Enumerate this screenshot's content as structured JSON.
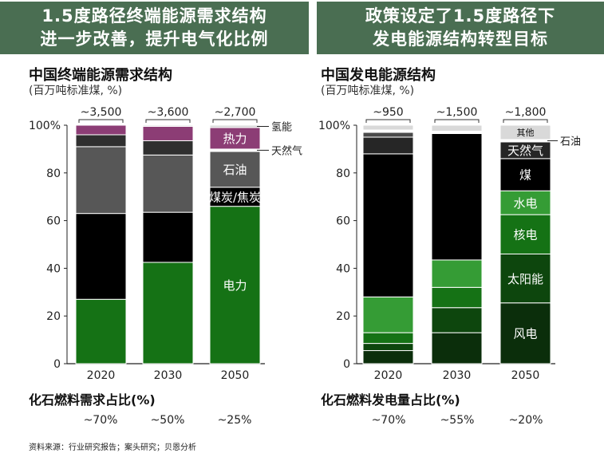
{
  "banners": {
    "left": [
      "1.5度路径终端能源需求结构",
      "进一步改善，提升电气化比例"
    ],
    "right": [
      "政策设定了1.5度路径下",
      "发电能源结构转型目标"
    ]
  },
  "source": "资料来源：行业研究报告；案头研究；贝恩分析",
  "chart_data": [
    {
      "type": "bar",
      "stacked": true,
      "title": "中国终端能源需求结构",
      "unit": "(百万吨标准煤, %)",
      "categories": [
        "2020",
        "2030",
        "2050"
      ],
      "totals": [
        "~3,500",
        "~3,600",
        "~2,700"
      ],
      "y_ticks": [
        "0",
        "20",
        "40",
        "60",
        "80",
        "100%"
      ],
      "ylim": [
        0,
        100
      ],
      "series": [
        {
          "name": "电力",
          "color": "#157215",
          "values": [
            27,
            42.5,
            66
          ]
        },
        {
          "name": "煤炭/焦炭",
          "color": "#000000",
          "values": [
            36,
            21,
            8
          ]
        },
        {
          "name": "石油",
          "color": "#575757",
          "values": [
            28,
            24,
            15
          ]
        },
        {
          "name": "",
          "color": "#2f2f2f",
          "values": [
            5,
            6,
            0
          ]
        },
        {
          "name": "天然气",
          "color": "#ffffff",
          "values": [
            0,
            0,
            1
          ]
        },
        {
          "name": "热力",
          "color": "#8c3d75",
          "values": [
            4,
            6,
            9
          ]
        },
        {
          "name": "氢能",
          "color": "#d9d9d9",
          "values": [
            0,
            0.5,
            1
          ]
        }
      ],
      "segment_labels": [
        {
          "category": "2050",
          "series": "电力",
          "text": "电力"
        },
        {
          "category": "2050",
          "series": "煤炭/焦炭",
          "text": "煤炭/焦炭"
        },
        {
          "category": "2050",
          "series": "石油",
          "text": "石油"
        },
        {
          "category": "2050",
          "series": "热力",
          "text": "热力"
        }
      ],
      "callouts": [
        {
          "text": "氢能",
          "y": 99.5
        },
        {
          "text": "天然气",
          "y": 89.5
        }
      ],
      "share_title": "化石燃料需求占比(%)",
      "shares": [
        "~70%",
        "~50%",
        "~25%"
      ]
    },
    {
      "type": "bar",
      "stacked": true,
      "title": "中国发电能源结构",
      "unit": "(百万吨标准煤, %)",
      "categories": [
        "2020",
        "2030",
        "2050"
      ],
      "totals": [
        "~950",
        "~1,500",
        "~1,800"
      ],
      "y_ticks": [
        "0",
        "20",
        "40",
        "60",
        "80",
        "100%"
      ],
      "ylim": [
        0,
        100
      ],
      "series": [
        {
          "name": "风电",
          "color": "#0b2e0b",
          "values": [
            5.5,
            13,
            25.5
          ]
        },
        {
          "name": "太阳能",
          "color": "#0d460d",
          "values": [
            3,
            10.5,
            20.5
          ]
        },
        {
          "name": "核电",
          "color": "#157215",
          "values": [
            4.5,
            8.5,
            16.5
          ]
        },
        {
          "name": "水电",
          "color": "#359c35",
          "values": [
            15,
            11.5,
            10
          ]
        },
        {
          "name": "煤",
          "color": "#000000",
          "values": [
            60,
            53,
            13.5
          ]
        },
        {
          "name": "天然气",
          "color": "#262626",
          "values": [
            7,
            0,
            7
          ]
        },
        {
          "name": "",
          "color": "#4a4a4a",
          "values": [
            2,
            0,
            0
          ]
        },
        {
          "name": "石油",
          "color": "#ffffff",
          "values": [
            1,
            1,
            1
          ]
        },
        {
          "name": "其他",
          "color": "#d9d9d9",
          "values": [
            2,
            2.5,
            6
          ]
        }
      ],
      "segment_labels": [
        {
          "category": "2050",
          "series": "风电",
          "text": "风电"
        },
        {
          "category": "2050",
          "series": "太阳能",
          "text": "太阳能"
        },
        {
          "category": "2050",
          "series": "核电",
          "text": "核电"
        },
        {
          "category": "2050",
          "series": "水电",
          "text": "水电"
        },
        {
          "category": "2050",
          "series": "煤",
          "text": "煤"
        },
        {
          "category": "2050",
          "series": "天然气",
          "text": "天然气"
        },
        {
          "category": "2050",
          "series": "其他",
          "text": "其他"
        }
      ],
      "callouts": [
        {
          "text": "石油",
          "y": 93.5
        }
      ],
      "share_title": "化石燃料发电量占比(%)",
      "shares": [
        "~70%",
        "~55%",
        "~20%"
      ]
    }
  ]
}
